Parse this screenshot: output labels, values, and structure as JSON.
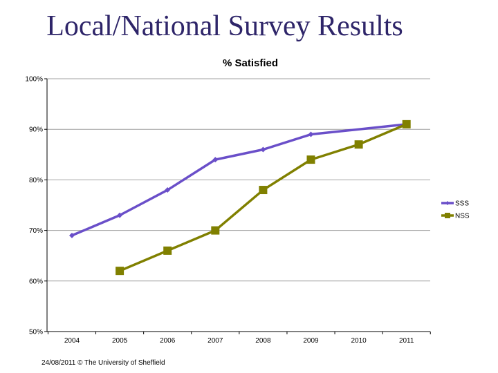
{
  "slide": {
    "title": "Local/National Survey Results",
    "footer": "24/08/2011 © The University of Sheffield"
  },
  "chart_data": {
    "type": "line",
    "title": "% Satisfied",
    "xlabel": "",
    "ylabel": "",
    "categories": [
      "2004",
      "2005",
      "2006",
      "2007",
      "2008",
      "2009",
      "2010",
      "2011"
    ],
    "ylim": [
      50,
      100
    ],
    "yticks": [
      50,
      60,
      70,
      80,
      90,
      100
    ],
    "ytick_labels": [
      "50%",
      "60%",
      "70%",
      "80%",
      "90%",
      "100%"
    ],
    "grid": true,
    "legend": "right",
    "series": [
      {
        "name": "SSS",
        "values": [
          69,
          73,
          78,
          84,
          86,
          89,
          null,
          91
        ],
        "color": "#6a4fc9",
        "marker": "diamond"
      },
      {
        "name": "NSS",
        "values": [
          null,
          62,
          66,
          70,
          78,
          84,
          87,
          91
        ],
        "color": "#808000",
        "marker": "square"
      }
    ]
  }
}
